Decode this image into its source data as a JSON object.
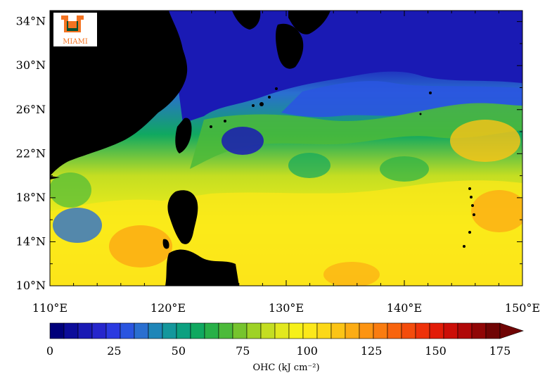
{
  "map": {
    "lon_ticks": [
      "110°E",
      "120°E",
      "130°E",
      "140°E",
      "150°E"
    ],
    "lat_ticks": [
      "10°N",
      "14°N",
      "18°N",
      "22°N",
      "26°N",
      "30°N",
      "34°N"
    ],
    "extent": {
      "lon_min": 110,
      "lon_max": 150,
      "lat_min": 10,
      "lat_max": 35
    },
    "land_color": "#000000",
    "field": "Ocean Heat Content"
  },
  "colorbar": {
    "tick_labels": [
      "0",
      "25",
      "50",
      "75",
      "100",
      "125",
      "150",
      "175"
    ],
    "tick_values": [
      0,
      25,
      50,
      75,
      100,
      125,
      150,
      175
    ],
    "min": 0,
    "max": 175,
    "unit_label": "OHC (kJ cm⁻²)",
    "colors": [
      "#00007a",
      "#0c0c9a",
      "#1a1ab4",
      "#2626cc",
      "#2b3ae0",
      "#2a55e0",
      "#2a6fd0",
      "#1f86b8",
      "#14979c",
      "#0da080",
      "#10a860",
      "#28b048",
      "#4cba3a",
      "#76c42e",
      "#9ed226",
      "#c4de22",
      "#e2e81e",
      "#f6f019",
      "#fce81a",
      "#fcd818",
      "#fcc416",
      "#fcac14",
      "#fc9412",
      "#fa7c10",
      "#f8640e",
      "#f44c0c",
      "#ee320a",
      "#e21c08",
      "#cc0e08",
      "#b00808",
      "#900606",
      "#700404"
    ]
  },
  "logo": {
    "letter": "U",
    "text": "MIAMI",
    "colors": {
      "orange": "#f47321",
      "green": "#005030"
    }
  }
}
